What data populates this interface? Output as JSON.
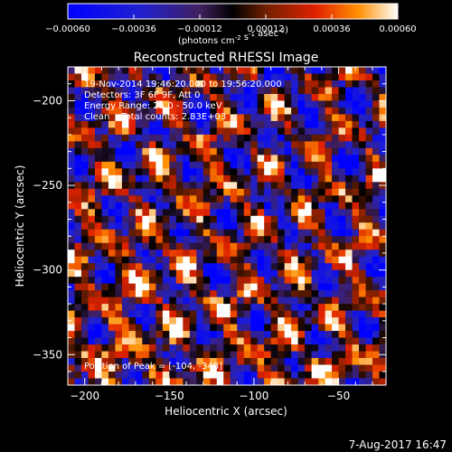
{
  "chart_data": {
    "type": "heatmap",
    "title": "Reconstructed RHESSI Image",
    "xlabel": "Heliocentric X (arcsec)",
    "ylabel": "Heliocentric Y (arcsec)",
    "xlim": [
      -210,
      -22
    ],
    "ylim": [
      -368,
      -180
    ],
    "x_ticks": [
      -200,
      -150,
      -100,
      -50
    ],
    "y_ticks": [
      -200,
      -250,
      -300,
      -350
    ],
    "colorbar": {
      "ticks": [
        -0.0006,
        -0.00036,
        -0.00012,
        0.00012,
        0.00036,
        0.0006
      ],
      "tick_labels": [
        "-0.00060",
        "-0.00036",
        "-0.00012",
        "0.00012",
        "0.00036",
        "0.00060"
      ],
      "unit_label": "(photons cm-2 s-1 asec-2)",
      "range": [
        -0.0006,
        0.0006
      ]
    },
    "annotations": {
      "time_range": "19-Nov-2014 19:46:20.000 to 19:56:20.000",
      "detectors": "Detectors: 3F 6F 9F, Att 0",
      "energy": "Energy Range: 25.0 - 50.0 keV",
      "clean": "Clean    Total counts: 2.83E+03",
      "peak": "Position of Peak = [-104, -348]"
    },
    "footer_date": "7-Aug-2017 16:47",
    "pixels": {
      "nx": 47,
      "ny": 47,
      "seed": 2014,
      "note": "intensity field, interference-fringe pattern"
    }
  }
}
